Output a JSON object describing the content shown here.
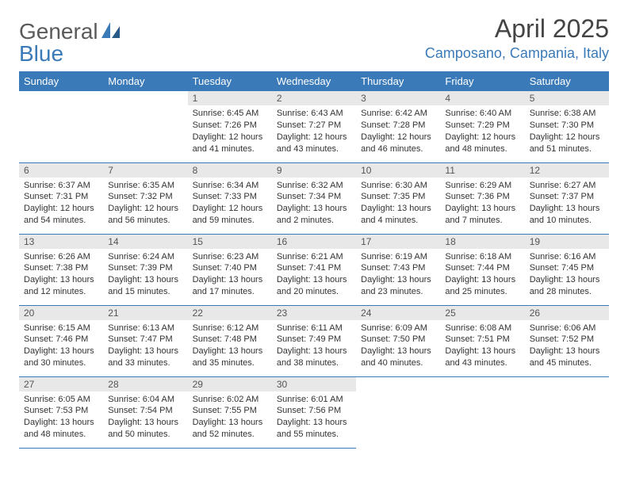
{
  "logo": {
    "part1": "General",
    "part2": "Blue"
  },
  "title": "April 2025",
  "location": "Camposano, Campania, Italy",
  "colors": {
    "accent": "#3a7ab8",
    "header_bg": "#3a7ab8",
    "daynum_bg": "#e8e8e8",
    "text": "#333333",
    "title_text": "#444444",
    "logo_gray": "#5a5a5a",
    "border": "#3a7ab8",
    "background": "#ffffff"
  },
  "fonts": {
    "title_size": 32,
    "location_size": 18,
    "logo_size": 28,
    "weekday_size": 13,
    "daynum_size": 12,
    "body_size": 11
  },
  "weekdays": [
    "Sunday",
    "Monday",
    "Tuesday",
    "Wednesday",
    "Thursday",
    "Friday",
    "Saturday"
  ],
  "weeks": [
    [
      null,
      null,
      {
        "n": "1",
        "sr": "Sunrise: 6:45 AM",
        "ss": "Sunset: 7:26 PM",
        "dl": "Daylight: 12 hours and 41 minutes."
      },
      {
        "n": "2",
        "sr": "Sunrise: 6:43 AM",
        "ss": "Sunset: 7:27 PM",
        "dl": "Daylight: 12 hours and 43 minutes."
      },
      {
        "n": "3",
        "sr": "Sunrise: 6:42 AM",
        "ss": "Sunset: 7:28 PM",
        "dl": "Daylight: 12 hours and 46 minutes."
      },
      {
        "n": "4",
        "sr": "Sunrise: 6:40 AM",
        "ss": "Sunset: 7:29 PM",
        "dl": "Daylight: 12 hours and 48 minutes."
      },
      {
        "n": "5",
        "sr": "Sunrise: 6:38 AM",
        "ss": "Sunset: 7:30 PM",
        "dl": "Daylight: 12 hours and 51 minutes."
      }
    ],
    [
      {
        "n": "6",
        "sr": "Sunrise: 6:37 AM",
        "ss": "Sunset: 7:31 PM",
        "dl": "Daylight: 12 hours and 54 minutes."
      },
      {
        "n": "7",
        "sr": "Sunrise: 6:35 AM",
        "ss": "Sunset: 7:32 PM",
        "dl": "Daylight: 12 hours and 56 minutes."
      },
      {
        "n": "8",
        "sr": "Sunrise: 6:34 AM",
        "ss": "Sunset: 7:33 PM",
        "dl": "Daylight: 12 hours and 59 minutes."
      },
      {
        "n": "9",
        "sr": "Sunrise: 6:32 AM",
        "ss": "Sunset: 7:34 PM",
        "dl": "Daylight: 13 hours and 2 minutes."
      },
      {
        "n": "10",
        "sr": "Sunrise: 6:30 AM",
        "ss": "Sunset: 7:35 PM",
        "dl": "Daylight: 13 hours and 4 minutes."
      },
      {
        "n": "11",
        "sr": "Sunrise: 6:29 AM",
        "ss": "Sunset: 7:36 PM",
        "dl": "Daylight: 13 hours and 7 minutes."
      },
      {
        "n": "12",
        "sr": "Sunrise: 6:27 AM",
        "ss": "Sunset: 7:37 PM",
        "dl": "Daylight: 13 hours and 10 minutes."
      }
    ],
    [
      {
        "n": "13",
        "sr": "Sunrise: 6:26 AM",
        "ss": "Sunset: 7:38 PM",
        "dl": "Daylight: 13 hours and 12 minutes."
      },
      {
        "n": "14",
        "sr": "Sunrise: 6:24 AM",
        "ss": "Sunset: 7:39 PM",
        "dl": "Daylight: 13 hours and 15 minutes."
      },
      {
        "n": "15",
        "sr": "Sunrise: 6:23 AM",
        "ss": "Sunset: 7:40 PM",
        "dl": "Daylight: 13 hours and 17 minutes."
      },
      {
        "n": "16",
        "sr": "Sunrise: 6:21 AM",
        "ss": "Sunset: 7:41 PM",
        "dl": "Daylight: 13 hours and 20 minutes."
      },
      {
        "n": "17",
        "sr": "Sunrise: 6:19 AM",
        "ss": "Sunset: 7:43 PM",
        "dl": "Daylight: 13 hours and 23 minutes."
      },
      {
        "n": "18",
        "sr": "Sunrise: 6:18 AM",
        "ss": "Sunset: 7:44 PM",
        "dl": "Daylight: 13 hours and 25 minutes."
      },
      {
        "n": "19",
        "sr": "Sunrise: 6:16 AM",
        "ss": "Sunset: 7:45 PM",
        "dl": "Daylight: 13 hours and 28 minutes."
      }
    ],
    [
      {
        "n": "20",
        "sr": "Sunrise: 6:15 AM",
        "ss": "Sunset: 7:46 PM",
        "dl": "Daylight: 13 hours and 30 minutes."
      },
      {
        "n": "21",
        "sr": "Sunrise: 6:13 AM",
        "ss": "Sunset: 7:47 PM",
        "dl": "Daylight: 13 hours and 33 minutes."
      },
      {
        "n": "22",
        "sr": "Sunrise: 6:12 AM",
        "ss": "Sunset: 7:48 PM",
        "dl": "Daylight: 13 hours and 35 minutes."
      },
      {
        "n": "23",
        "sr": "Sunrise: 6:11 AM",
        "ss": "Sunset: 7:49 PM",
        "dl": "Daylight: 13 hours and 38 minutes."
      },
      {
        "n": "24",
        "sr": "Sunrise: 6:09 AM",
        "ss": "Sunset: 7:50 PM",
        "dl": "Daylight: 13 hours and 40 minutes."
      },
      {
        "n": "25",
        "sr": "Sunrise: 6:08 AM",
        "ss": "Sunset: 7:51 PM",
        "dl": "Daylight: 13 hours and 43 minutes."
      },
      {
        "n": "26",
        "sr": "Sunrise: 6:06 AM",
        "ss": "Sunset: 7:52 PM",
        "dl": "Daylight: 13 hours and 45 minutes."
      }
    ],
    [
      {
        "n": "27",
        "sr": "Sunrise: 6:05 AM",
        "ss": "Sunset: 7:53 PM",
        "dl": "Daylight: 13 hours and 48 minutes."
      },
      {
        "n": "28",
        "sr": "Sunrise: 6:04 AM",
        "ss": "Sunset: 7:54 PM",
        "dl": "Daylight: 13 hours and 50 minutes."
      },
      {
        "n": "29",
        "sr": "Sunrise: 6:02 AM",
        "ss": "Sunset: 7:55 PM",
        "dl": "Daylight: 13 hours and 52 minutes."
      },
      {
        "n": "30",
        "sr": "Sunrise: 6:01 AM",
        "ss": "Sunset: 7:56 PM",
        "dl": "Daylight: 13 hours and 55 minutes."
      },
      null,
      null,
      null
    ]
  ]
}
